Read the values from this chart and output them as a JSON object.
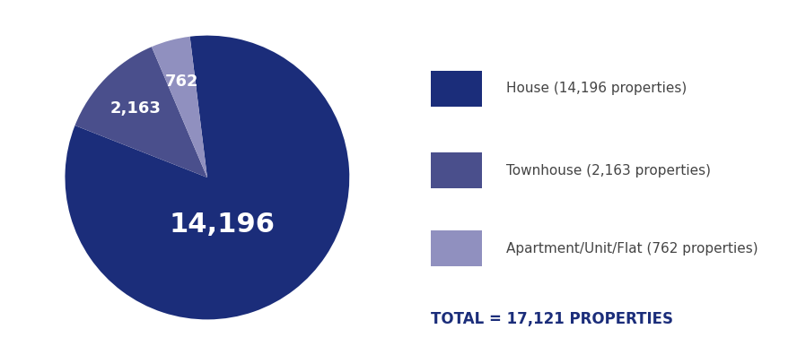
{
  "values": [
    14196,
    2163,
    762
  ],
  "labels": [
    "14,196",
    "2,163",
    "762"
  ],
  "colors": [
    "#1b2d7a",
    "#4a4f8c",
    "#9090bf"
  ],
  "legend_labels": [
    "House (14,196 properties)",
    "Townhouse (2,163 properties)",
    "Apartment/Unit/Flat (762 properties)"
  ],
  "total_text": "TOTAL = 17,121 PROPERTIES",
  "total_color": "#1b2d7a",
  "label_color": "#ffffff",
  "background_color": "#ffffff",
  "label_fontsize_large": 22,
  "label_fontsize_small": 13,
  "legend_fontsize": 11,
  "total_fontsize": 12,
  "startangle": 97
}
